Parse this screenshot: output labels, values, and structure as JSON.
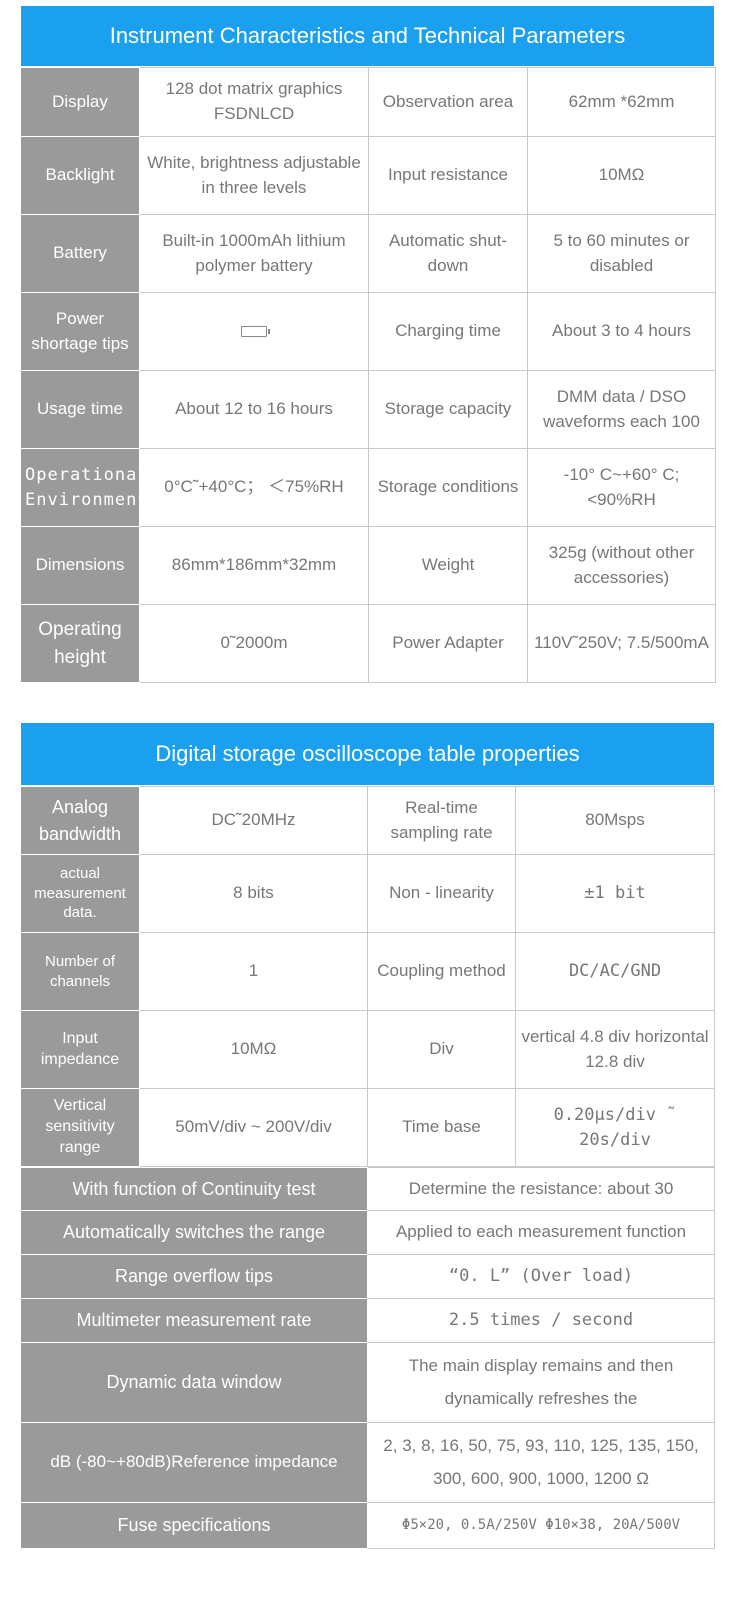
{
  "section1": {
    "title": "Instrument Characteristics and Technical Parameters",
    "rows": [
      {
        "label1": "Display",
        "value1": "128 dot matrix graphics FSDNLCD",
        "label2": "Observation area",
        "value2": "62mm *62mm"
      },
      {
        "label1": "Backlight",
        "value1": "White, brightness adjustable in three levels",
        "label2": "Input resistance",
        "value2": "10MΩ"
      },
      {
        "label1": "Battery",
        "value1": "Built-in 1000mAh lithium polymer battery",
        "label2": "Automatic shut-down",
        "value2": "5 to 60 minutes or disabled"
      },
      {
        "label1": "Power shortage tips",
        "value1_icon": "battery-low-icon",
        "label2": "Charging time",
        "value2": "About 3 to 4 hours"
      },
      {
        "label1": "Usage time",
        "value1": "About 12 to 16 hours",
        "label2": "Storage capacity",
        "value2": "DMM data / DSO waveforms each 100"
      },
      {
        "label1": "Operational Environment",
        "value1": "0°C˜+40°C； ＜75%RH",
        "label2": "Storage conditions",
        "value2": "-10° C~+60° C; <90%RH"
      },
      {
        "label1": "Dimensions",
        "value1": "86mm*186mm*32mm",
        "label2": "Weight",
        "value2": "325g (without other accessories)"
      },
      {
        "label1": "Operating height",
        "value1": "0˜2000m",
        "label2": "Power Adapter",
        "value2": "110V˜250V; 7.5/500mA"
      }
    ]
  },
  "section2": {
    "title": "Digital storage oscilloscope table properties",
    "rows4": [
      {
        "label1": "Analog bandwidth",
        "value1": "DC˜20MHz",
        "label2": "Real-time sampling rate",
        "value2": "80Msps"
      },
      {
        "label1": "actual measurement data.",
        "value1": "8 bits",
        "label2": "Non - linearity",
        "value2": "±1 bit"
      },
      {
        "label1": "Number of channels",
        "value1": "1",
        "label2": "Coupling method",
        "value2": "DC/AC/GND"
      },
      {
        "label1": "Input impedance",
        "value1": "10MΩ",
        "label2": "Div",
        "value2": "vertical 4.8 div horizontal 12.8 div"
      },
      {
        "label1": "Vertical sensitivity range",
        "value1": "50mV/div ~ 200V/div",
        "label2": "Time base",
        "value2": "0.20μs/div ˜ 20s/div"
      }
    ],
    "rows2": [
      {
        "label": "With function of Continuity test",
        "value": "Determine the resistance: about 30"
      },
      {
        "label": "Automatically switches the range",
        "value": "Applied to each measurement function"
      },
      {
        "label": "Range overflow tips",
        "value": "“0. L” (Over load)"
      },
      {
        "label": "Multimeter measurement rate",
        "value": "2.5 times / second"
      },
      {
        "label": "Dynamic data window",
        "value": "The main display remains and then dynamically refreshes the"
      },
      {
        "label": "dB (-80~+80dB)Reference impedance",
        "value": "2, 3, 8, 16, 50, 75, 93, 110, 125, 135, 150, 300, 600, 900, 1000, 1200 Ω"
      },
      {
        "label": "Fuse specifications",
        "value": "Φ5×20, 0.5A/250V Φ10×38, 20A/500V"
      }
    ]
  }
}
